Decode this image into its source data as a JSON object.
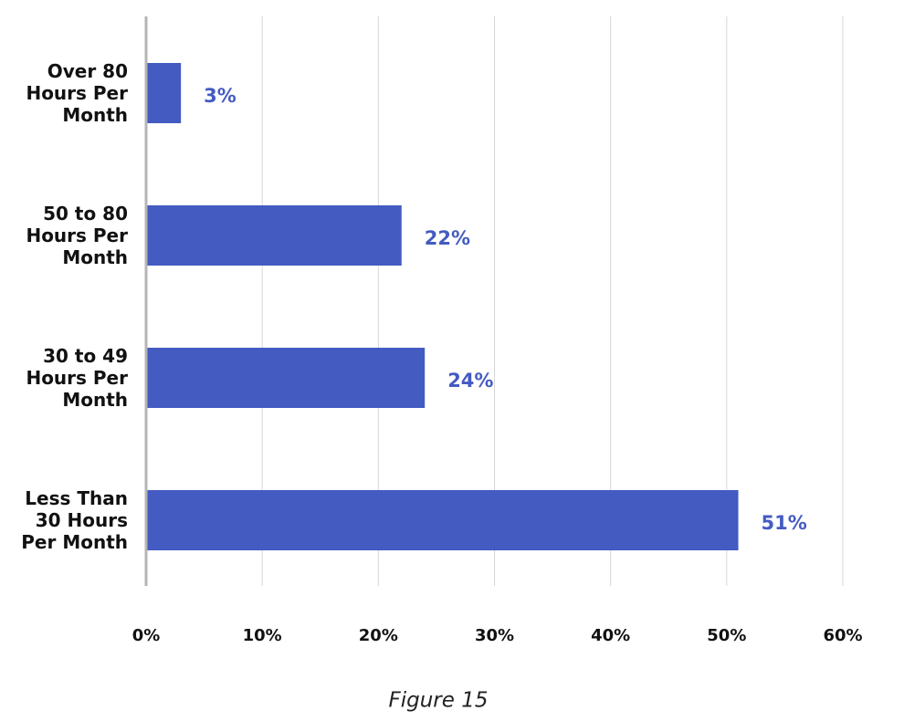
{
  "chart_data": {
    "type": "bar",
    "orientation": "horizontal",
    "caption": "Figure 15",
    "categories": [
      "Over 80 Hours Per Month",
      "50 to 80 Hours Per Month",
      "30 to 49 Hours Per Month",
      "Less Than 30 Hours Per Month"
    ],
    "values": [
      3,
      22,
      24,
      51
    ],
    "value_labels": [
      "3%",
      "22%",
      "24%",
      "51%"
    ],
    "color": "#445bc1",
    "xlim": [
      0,
      60
    ],
    "xticks": [
      {
        "value": 0,
        "label": "0%"
      },
      {
        "value": 10,
        "label": "10%"
      },
      {
        "value": 20,
        "label": "20%"
      },
      {
        "value": 30,
        "label": "30%"
      },
      {
        "value": 40,
        "label": "40%"
      },
      {
        "value": 50,
        "label": "50%"
      },
      {
        "value": 60,
        "label": "60%"
      }
    ],
    "grid": true
  }
}
